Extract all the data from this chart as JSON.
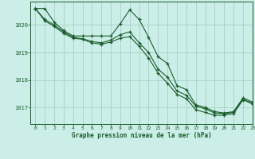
{
  "xlabel": "Graphe pression niveau de la mer (hPa)",
  "xlim": [
    -0.5,
    23
  ],
  "ylim": [
    1016.4,
    1020.85
  ],
  "yticks": [
    1017,
    1018,
    1019,
    1020
  ],
  "xticks": [
    0,
    1,
    2,
    3,
    4,
    5,
    6,
    7,
    8,
    9,
    10,
    11,
    12,
    13,
    14,
    15,
    16,
    17,
    18,
    19,
    20,
    21,
    22,
    23
  ],
  "bg_color": "#cceee8",
  "grid_color": "#99ccbb",
  "line_color": "#1a5c2a",
  "line1_x": [
    0,
    1,
    2,
    3,
    4,
    5,
    6,
    7,
    8,
    9,
    10,
    11,
    12,
    13,
    14,
    15,
    16,
    17,
    18,
    19,
    20,
    21,
    22,
    23
  ],
  "line1_y": [
    1020.6,
    1020.6,
    1020.1,
    1019.8,
    1019.6,
    1019.6,
    1019.6,
    1019.6,
    1019.6,
    1020.05,
    1020.55,
    1020.2,
    1019.55,
    1018.85,
    1018.6,
    1017.8,
    1017.65,
    1017.1,
    1017.0,
    1016.85,
    1016.8,
    1016.85,
    1017.35,
    1017.2
  ],
  "line2_x": [
    0,
    1,
    2,
    3,
    4,
    5,
    6,
    7,
    8,
    9,
    10,
    11,
    12,
    13,
    14,
    15,
    16,
    17,
    18,
    19,
    20,
    21,
    22,
    23
  ],
  "line2_y": [
    1020.6,
    1020.2,
    1020.0,
    1019.75,
    1019.55,
    1019.5,
    1019.4,
    1019.35,
    1019.45,
    1019.65,
    1019.75,
    1019.35,
    1019.0,
    1018.4,
    1018.1,
    1017.6,
    1017.45,
    1017.05,
    1016.95,
    1016.8,
    1016.78,
    1016.82,
    1017.3,
    1017.15
  ],
  "line3_x": [
    0,
    1,
    2,
    3,
    4,
    5,
    6,
    7,
    8,
    9,
    10,
    11,
    12,
    13,
    14,
    15,
    16,
    17,
    18,
    19,
    20,
    21,
    22,
    23
  ],
  "line3_y": [
    1020.6,
    1020.15,
    1019.95,
    1019.7,
    1019.52,
    1019.48,
    1019.35,
    1019.3,
    1019.38,
    1019.52,
    1019.58,
    1019.22,
    1018.8,
    1018.25,
    1017.88,
    1017.48,
    1017.32,
    1016.92,
    1016.82,
    1016.72,
    1016.72,
    1016.78,
    1017.28,
    1017.13
  ]
}
